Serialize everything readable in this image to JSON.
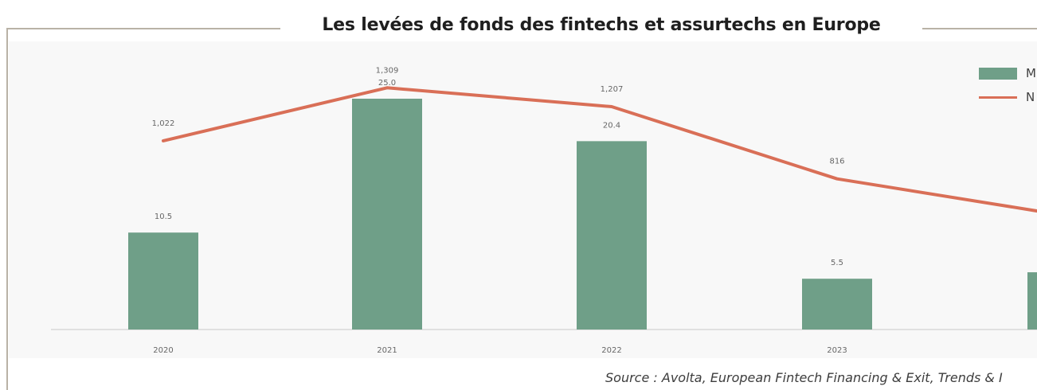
{
  "colors": {
    "bar": "#6f9f88",
    "line": "#d96f57",
    "frame": "#b9b2a6",
    "plot_background": "#f8f8f8",
    "axis": "#d8d8d8",
    "label": "#666666"
  },
  "chart_data": {
    "type": "bar",
    "title": "Les levées de fonds des fintechs et assurtechs en Europe",
    "categories": [
      "2020",
      "2021",
      "2022",
      "2023",
      ""
    ],
    "bar_series": {
      "name": "M",
      "values": [
        10.5,
        25.0,
        20.4,
        5.5,
        6.2
      ],
      "labels": [
        "10.5",
        "25.0",
        "20.4",
        "5.5",
        ""
      ]
    },
    "line_series": {
      "name": "N",
      "values": [
        1022,
        1309,
        1207,
        816,
        620
      ],
      "labels": [
        "1,022",
        "1,309",
        "1,207",
        "816",
        ""
      ]
    },
    "bar_axis": {
      "ylim": [
        0,
        30
      ]
    },
    "line_axis": {
      "ylim": [
        0,
        1500
      ]
    },
    "legend": {
      "placement": "top-right"
    },
    "grid": false,
    "source": "Source : Avolta, European Fintech Financing & Exit, Trends & I"
  }
}
